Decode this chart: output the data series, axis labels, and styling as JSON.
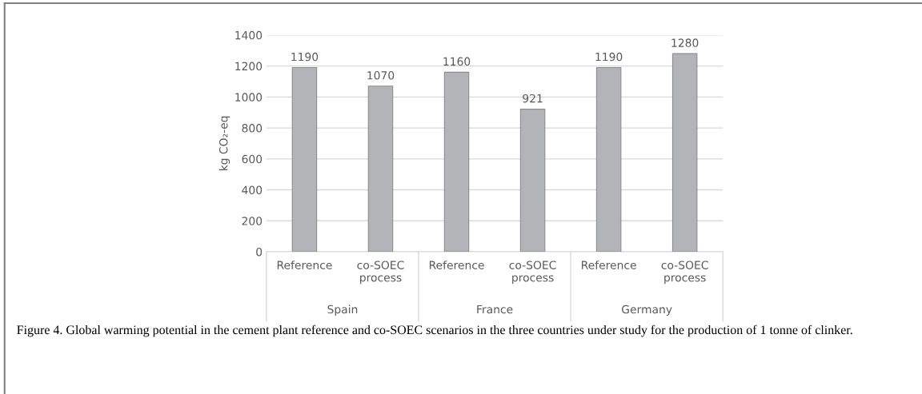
{
  "chart_data": {
    "type": "bar",
    "ylabel": "kg CO₂-eq",
    "categories": [
      "Reference",
      "co-SOEC\nprocess",
      "Reference",
      "co-SOEC\nprocess",
      "Reference",
      "co-SOEC\nprocess"
    ],
    "values": [
      1190,
      1070,
      1160,
      921,
      1190,
      1280
    ],
    "color": "#b3b4b7",
    "ylim": [
      0,
      1400
    ],
    "yticks": [
      0,
      200,
      400,
      600,
      800,
      1000,
      1200,
      1400
    ],
    "grid": "y",
    "data_labels": true,
    "annotations": [
      "Spain",
      "France",
      "Germany",
      "Figure 4. Global warming potential in the cement plant reference and co-SOEC scenarios in the three countries under study for the production of 1 tonne of clinker."
    ]
  }
}
